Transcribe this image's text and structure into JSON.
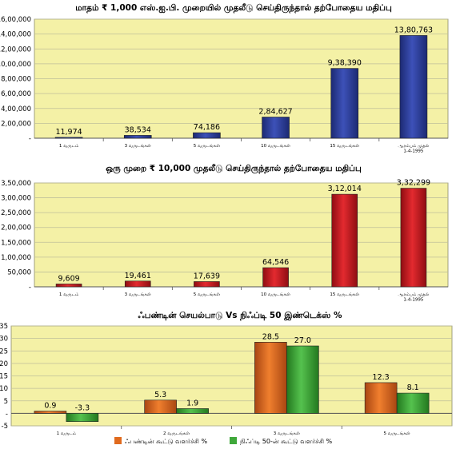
{
  "colors": {
    "plot_bg": "#f4f1a6",
    "grid": "#bfbf9a",
    "blue_bar": "#2b3d98",
    "red_bar": "#c4141b",
    "orange_bar": "#e06a1e",
    "green_bar": "#3fa83a"
  },
  "chart_data": [
    {
      "type": "bar",
      "title": "மாதம் ₹ 1,000 எஸ்.ஐ.பி. முறையில்  முதலீடு செய்திருந்தால் தற்போதைய மதிப்பு",
      "categories": [
        "1 வருடம்",
        "3 வருடங்கள்",
        "5 வருடங்கள்",
        "10 வருடங்கள்",
        "15 வருடங்கள்",
        "ஆரம்பம் முதல் 1-4-1995"
      ],
      "values": [
        11974,
        38534,
        74186,
        284627,
        938390,
        1380763
      ],
      "value_labels": [
        "11,974",
        "38,534",
        "74,186",
        "2,84,627",
        "9,38,390",
        "13,80,763"
      ],
      "ylim": [
        0,
        1600000
      ],
      "yticks": [
        0,
        200000,
        400000,
        600000,
        800000,
        1000000,
        1200000,
        1400000,
        1600000
      ],
      "ytick_labels": [
        "-",
        "2,00,000",
        "4,00,000",
        "6,00,000",
        "8,00,000",
        "10,00,000",
        "12,00,000",
        "14,00,000",
        "16,00,000"
      ],
      "grid": true
    },
    {
      "type": "bar",
      "title": "ஒரு முறை ₹ 10,000 முதலீடு செய்திருந்தால் தற்போதைய மதிப்பு",
      "categories": [
        "1 வருடம்",
        "3 வருடங்கள்",
        "5 வருடங்கள்",
        "10 வருடங்கள்",
        "15 வருடங்கள்",
        "ஆரம்பம் முதல் 1-4-1995"
      ],
      "values": [
        9609,
        19461,
        17639,
        64546,
        312014,
        332299
      ],
      "value_labels": [
        "9,609",
        "19,461",
        "17,639",
        "64,546",
        "3,12,014",
        "3,32,299"
      ],
      "ylim": [
        0,
        350000
      ],
      "yticks": [
        0,
        50000,
        100000,
        150000,
        200000,
        250000,
        300000,
        350000
      ],
      "ytick_labels": [
        "-",
        "50,000",
        "1,00,000",
        "1,50,000",
        "2,00,000",
        "2,50,000",
        "3,00,000",
        "3,50,000"
      ],
      "grid": true
    },
    {
      "type": "bar",
      "title": "ஃபண்டின் செயல்பாடு Vs நிஃப்டி 50 இண்டெக்ஸ் %",
      "categories": [
        "1 வருடம்",
        "2 வருடங்கள்",
        "3 வருடங்கள்",
        "5 வருடங்கள்"
      ],
      "series": [
        {
          "name": "ஃபண்டின் கூட்டு வளர்ச்சி %",
          "values": [
            0.9,
            5.3,
            28.5,
            12.3
          ],
          "value_labels": [
            "0.9",
            "5.3",
            "28.5",
            "12.3"
          ]
        },
        {
          "name": "நிஃப்டி 50-ன் கூட்டு வளர்ச்சி %",
          "values": [
            -3.3,
            1.9,
            27.0,
            8.1
          ],
          "value_labels": [
            "-3.3",
            "1.9",
            "27.0",
            "8.1"
          ]
        }
      ],
      "ylim": [
        -5,
        35
      ],
      "yticks": [
        -5,
        0,
        5,
        10,
        15,
        20,
        25,
        30,
        35
      ],
      "ytick_labels": [
        "-5",
        "-",
        "5",
        "10",
        "15",
        "20",
        "25",
        "30",
        "35"
      ],
      "grid": true,
      "legend_position": "bottom"
    }
  ]
}
